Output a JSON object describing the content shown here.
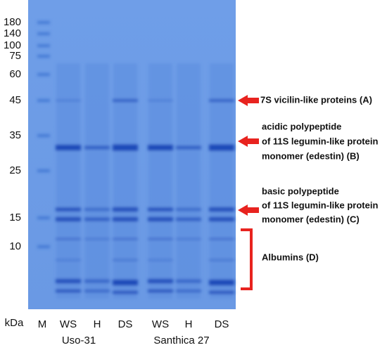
{
  "markers": [
    "180",
    "140",
    "100",
    "75",
    "60",
    "45",
    "35",
    "25",
    "15",
    "10"
  ],
  "unit_label": "kDa",
  "lanes": [
    "M",
    "WS",
    "H",
    "DS",
    "WS",
    "H",
    "DS"
  ],
  "groups": [
    "Uso-31",
    "Santhica 27"
  ],
  "annotations": [
    {
      "lines": [
        "7S vicilin-like proteins (A)"
      ]
    },
    {
      "lines": [
        "acidic polypeptide",
        "of 11S legumin-like protein",
        "monomer (edestin) (B)"
      ]
    },
    {
      "lines": [
        "basic polypeptide",
        "of 11S legumin-like protein",
        "monomer (edestin) (C)"
      ]
    },
    {
      "lines": [
        "Albumins (D)"
      ]
    }
  ]
}
